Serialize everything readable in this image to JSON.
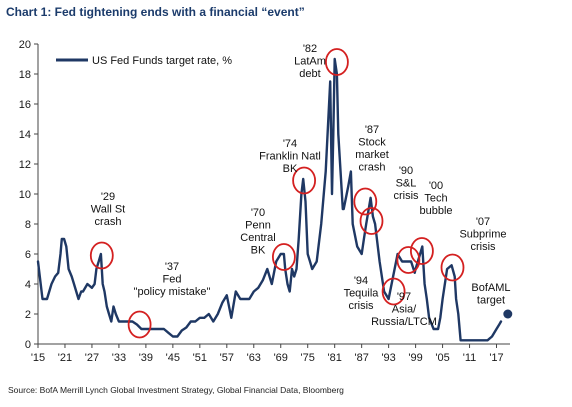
{
  "chart_data": {
    "type": "line",
    "title": "Chart 1: Fed tightening ends with a financial “event”",
    "source": "Source:  BofA Merrill Lynch Global Investment Strategy, Global Financial Data, Bloomberg",
    "xlabel": "",
    "ylabel": "",
    "xlim": [
      1915,
      2020
    ],
    "ylim": [
      0,
      20
    ],
    "grid": false,
    "legend_position": "top-left",
    "colors": {
      "series": "#1f3864",
      "highlight": "#d42020",
      "title": "#1b3b6b"
    },
    "x_ticks": [
      "'15",
      "'21",
      "'27",
      "'33",
      "'39",
      "'45",
      "'51",
      "'57",
      "'63",
      "'69",
      "'75",
      "'81",
      "'87",
      "'93",
      "'99",
      "'05",
      "'11",
      "'17"
    ],
    "x_tick_years": [
      1915,
      1921,
      1927,
      1933,
      1939,
      1945,
      1951,
      1957,
      1963,
      1969,
      1975,
      1981,
      1987,
      1993,
      1999,
      2005,
      2011,
      2017
    ],
    "y_ticks": [
      "0",
      "2",
      "4",
      "6",
      "8",
      "10",
      "12",
      "14",
      "16",
      "18",
      "20"
    ],
    "y_tick_values": [
      0,
      2,
      4,
      6,
      8,
      10,
      12,
      14,
      16,
      18,
      20
    ],
    "series": [
      {
        "name": "US Fed Funds target rate, %",
        "x": [
          1915,
          1915.6,
          1916,
          1917,
          1918,
          1918.8,
          1919.5,
          1920,
          1920.3,
          1920.8,
          1921.3,
          1921.8,
          1922.5,
          1923,
          1924,
          1924.6,
          1925,
          1926,
          1927,
          1927.6,
          1928,
          1928.5,
          1929,
          1929.4,
          1929.8,
          1930.3,
          1930.8,
          1931.3,
          1931.8,
          1932.3,
          1933,
          1934,
          1935,
          1936,
          1937,
          1938,
          1939,
          1940,
          1941,
          1942,
          1943,
          1944,
          1945,
          1946,
          1947,
          1948,
          1949,
          1950,
          1951,
          1952,
          1953,
          1954,
          1955,
          1956,
          1957,
          1958,
          1959,
          1960,
          1961,
          1962,
          1963,
          1964,
          1965,
          1966,
          1967,
          1968,
          1969,
          1969.7,
          1970,
          1970.5,
          1971,
          1971.5,
          1972,
          1972.5,
          1973,
          1973.6,
          1974,
          1974.5,
          1975,
          1975.5,
          1976,
          1977,
          1978,
          1979,
          1980,
          1980.4,
          1980.7,
          1981,
          1981.5,
          1981.8,
          1982.2,
          1982.8,
          1983,
          1984,
          1984.6,
          1985,
          1986,
          1987,
          1987.5,
          1988,
          1989,
          1989.5,
          1990,
          1991,
          1992,
          1993,
          1994,
          1995,
          1996,
          1997,
          1998,
          1998.8,
          1999,
          2000,
          2000.5,
          2001,
          2001.5,
          2002,
          2003,
          2004,
          2004.5,
          2005,
          2006,
          2007,
          2007.7,
          2008,
          2008.5,
          2009,
          2010,
          2011,
          2012,
          2013,
          2014,
          2015,
          2016,
          2017,
          2017.5,
          2018
        ],
        "values": [
          5.5,
          4.0,
          3.0,
          3.0,
          4.0,
          4.5,
          4.75,
          6.0,
          7.0,
          7.0,
          6.5,
          5.0,
          4.5,
          4.0,
          3.0,
          3.5,
          3.5,
          4.0,
          3.75,
          4.0,
          5.0,
          5.5,
          6.0,
          4.0,
          3.5,
          2.5,
          2.0,
          1.5,
          2.5,
          2.0,
          1.5,
          1.5,
          1.5,
          1.5,
          1.3,
          1.0,
          1.0,
          1.0,
          1.0,
          1.0,
          1.0,
          0.75,
          0.5,
          0.5,
          0.9,
          1.1,
          1.5,
          1.5,
          1.75,
          1.75,
          2.0,
          1.5,
          2.0,
          2.75,
          3.25,
          1.75,
          3.5,
          3.0,
          3.0,
          3.0,
          3.5,
          3.75,
          4.25,
          5.0,
          4.0,
          5.5,
          6.0,
          6.0,
          5.0,
          4.0,
          3.5,
          5.0,
          4.5,
          5.0,
          7.0,
          10.0,
          11.0,
          9.5,
          6.0,
          5.5,
          5.0,
          5.5,
          8.0,
          11.5,
          17.5,
          10.0,
          14.0,
          19.0,
          18.0,
          14.0,
          12.0,
          9.0,
          9.0,
          10.5,
          11.5,
          8.0,
          6.5,
          6.0,
          7.0,
          8.0,
          9.75,
          8.5,
          8.0,
          5.5,
          3.5,
          3.0,
          4.5,
          6.0,
          5.5,
          5.5,
          5.5,
          4.75,
          5.0,
          6.0,
          6.5,
          4.0,
          3.0,
          1.75,
          1.0,
          1.0,
          1.75,
          3.0,
          5.0,
          5.25,
          4.5,
          3.0,
          2.0,
          0.25,
          0.25,
          0.25,
          0.25,
          0.25,
          0.25,
          0.25,
          0.5,
          1.0,
          1.25,
          1.5
        ]
      }
    ],
    "target_point": {
      "label_line1": "BofAML",
      "label_line2": "target",
      "year": 2019.5,
      "value": 2.0
    },
    "annotations": [
      {
        "lines": [
          "'29",
          "Wall St",
          "crash"
        ],
        "circle_year": 1929.2,
        "circle_value": 5.9
      },
      {
        "lines": [
          "'37",
          "Fed",
          "\"policy mistake\""
        ],
        "circle_year": 1937.6,
        "circle_value": 1.3
      },
      {
        "lines": [
          "'70",
          "Penn",
          "Central",
          "BK"
        ],
        "circle_year": 1969.7,
        "circle_value": 5.8
      },
      {
        "lines": [
          "'74",
          "Franklin Natl",
          "BK"
        ],
        "circle_year": 1974.2,
        "circle_value": 10.9
      },
      {
        "lines": [
          "'82",
          "LatAm",
          "debt"
        ],
        "circle_year": 1981.5,
        "circle_value": 18.8
      },
      {
        "lines": [
          "'87",
          "Stock",
          "market",
          "crash"
        ],
        "circle_year": 1987.8,
        "circle_value": 9.5
      },
      {
        "lines": [
          "'90",
          "S&L",
          "crisis"
        ],
        "circle_year": 1989.2,
        "circle_value": 8.2
      },
      {
        "lines": [
          "'94",
          "Tequila",
          "crisis"
        ],
        "circle_year": 1994.1,
        "circle_value": 3.5
      },
      {
        "lines": [
          "'97",
          "Asia/",
          "Russia/LTCM"
        ],
        "circle_year": 1997.4,
        "circle_value": 5.6
      },
      {
        "lines": [
          "'00",
          "Tech",
          "bubble"
        ],
        "circle_year": 2000.4,
        "circle_value": 6.2
      },
      {
        "lines": [
          "'07",
          "Subprime",
          "crisis"
        ],
        "circle_year": 2007.2,
        "circle_value": 5.1
      }
    ]
  }
}
